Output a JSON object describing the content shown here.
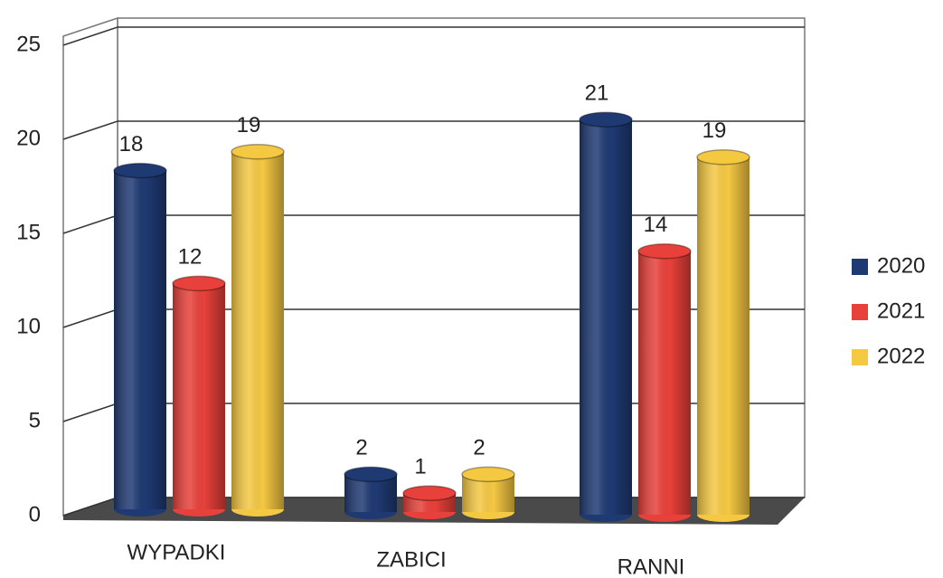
{
  "chart_data": {
    "type": "bar",
    "categories": [
      "WYPADKI",
      "ZABICI",
      "RANNI"
    ],
    "series": [
      {
        "name": "2020",
        "color": "#1f3a73",
        "values": [
          18,
          2,
          21
        ]
      },
      {
        "name": "2021",
        "color": "#e8403a",
        "values": [
          12,
          1,
          14
        ]
      },
      {
        "name": "2022",
        "color": "#f5c842",
        "values": [
          19,
          2,
          19
        ]
      }
    ],
    "ylim": [
      0,
      25
    ],
    "yticks": [
      0,
      5,
      10,
      15,
      20,
      25
    ],
    "grid": true,
    "legend": "right"
  }
}
